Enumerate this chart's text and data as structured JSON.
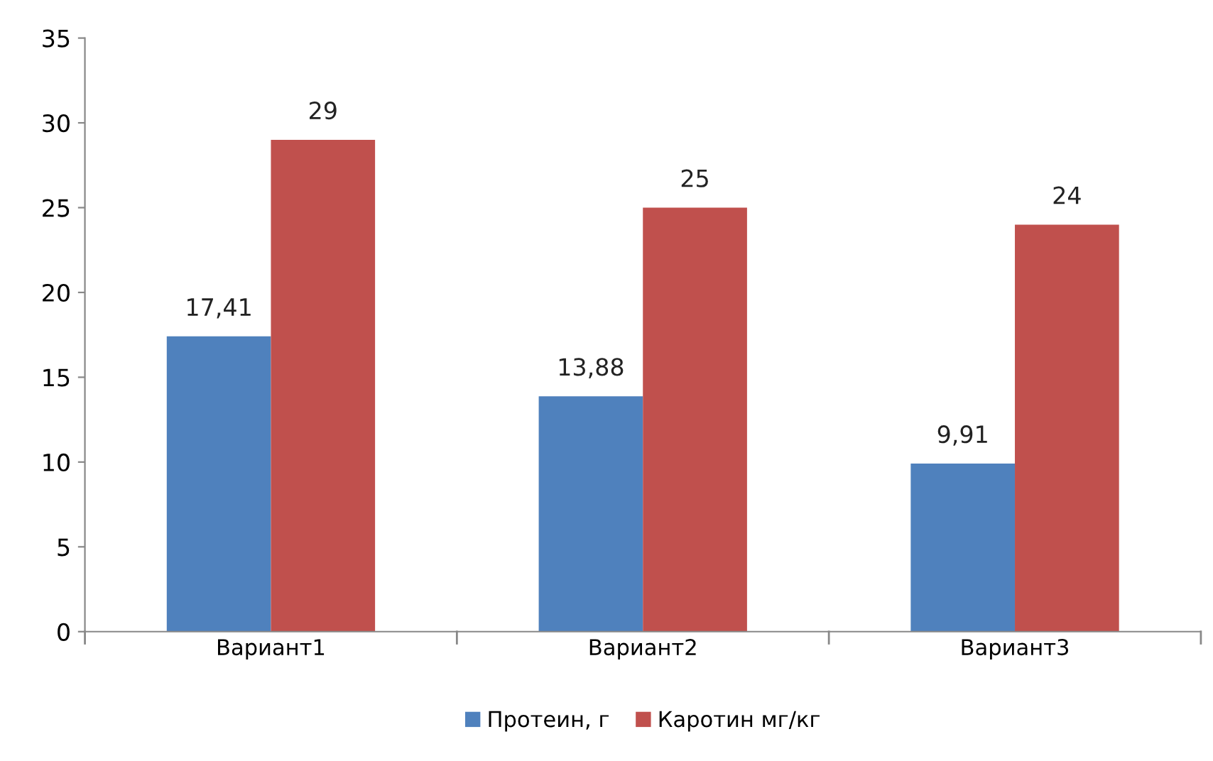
{
  "chart_data": {
    "type": "bar",
    "categories": [
      "Вариант1",
      "Вариант2",
      "Вариант3"
    ],
    "series": [
      {
        "name": "Протеин, г",
        "color": "#4f81bd",
        "values": [
          17.41,
          13.88,
          9.91
        ],
        "value_labels": [
          "17,41",
          "13,88",
          "9,91"
        ]
      },
      {
        "name": "Каротин мг/кг",
        "color": "#c0504d",
        "values": [
          29,
          25,
          24
        ],
        "value_labels": [
          "29",
          "25",
          "24"
        ]
      }
    ],
    "ylim": [
      0,
      35
    ],
    "yticks": [
      0,
      5,
      10,
      15,
      20,
      25,
      30,
      35
    ],
    "grid": false,
    "legend": "bottom"
  }
}
